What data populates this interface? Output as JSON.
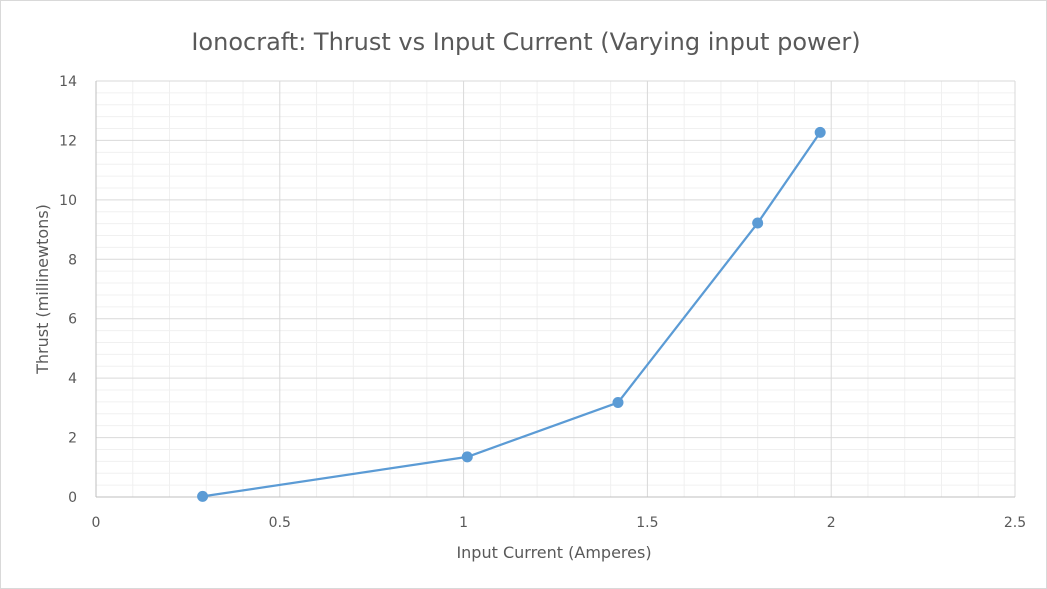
{
  "chart_data": {
    "type": "scatter",
    "title": "Ionocraft: Thrust vs Input Current (Varying input power)",
    "xlabel": "Input Current (Amperes)",
    "ylabel": "Thrust (millinewtons)",
    "xlim": [
      0,
      2.5
    ],
    "ylim": [
      0,
      14
    ],
    "x_major_step": 0.5,
    "y_major_step": 2,
    "x_ticks": [
      "0",
      "0.5",
      "1",
      "1.5",
      "2",
      "2.5"
    ],
    "y_ticks": [
      "0",
      "2",
      "4",
      "6",
      "8",
      "10",
      "12",
      "14"
    ],
    "grid": true,
    "legend": "none",
    "series": [
      {
        "color": "#5b9bd5",
        "lines": true,
        "markers": true,
        "points": [
          {
            "x": 0.29,
            "y": 0.02
          },
          {
            "x": 1.01,
            "y": 1.35
          },
          {
            "x": 1.42,
            "y": 3.18
          },
          {
            "x": 1.8,
            "y": 9.22
          },
          {
            "x": 1.97,
            "y": 12.27
          }
        ]
      }
    ]
  }
}
